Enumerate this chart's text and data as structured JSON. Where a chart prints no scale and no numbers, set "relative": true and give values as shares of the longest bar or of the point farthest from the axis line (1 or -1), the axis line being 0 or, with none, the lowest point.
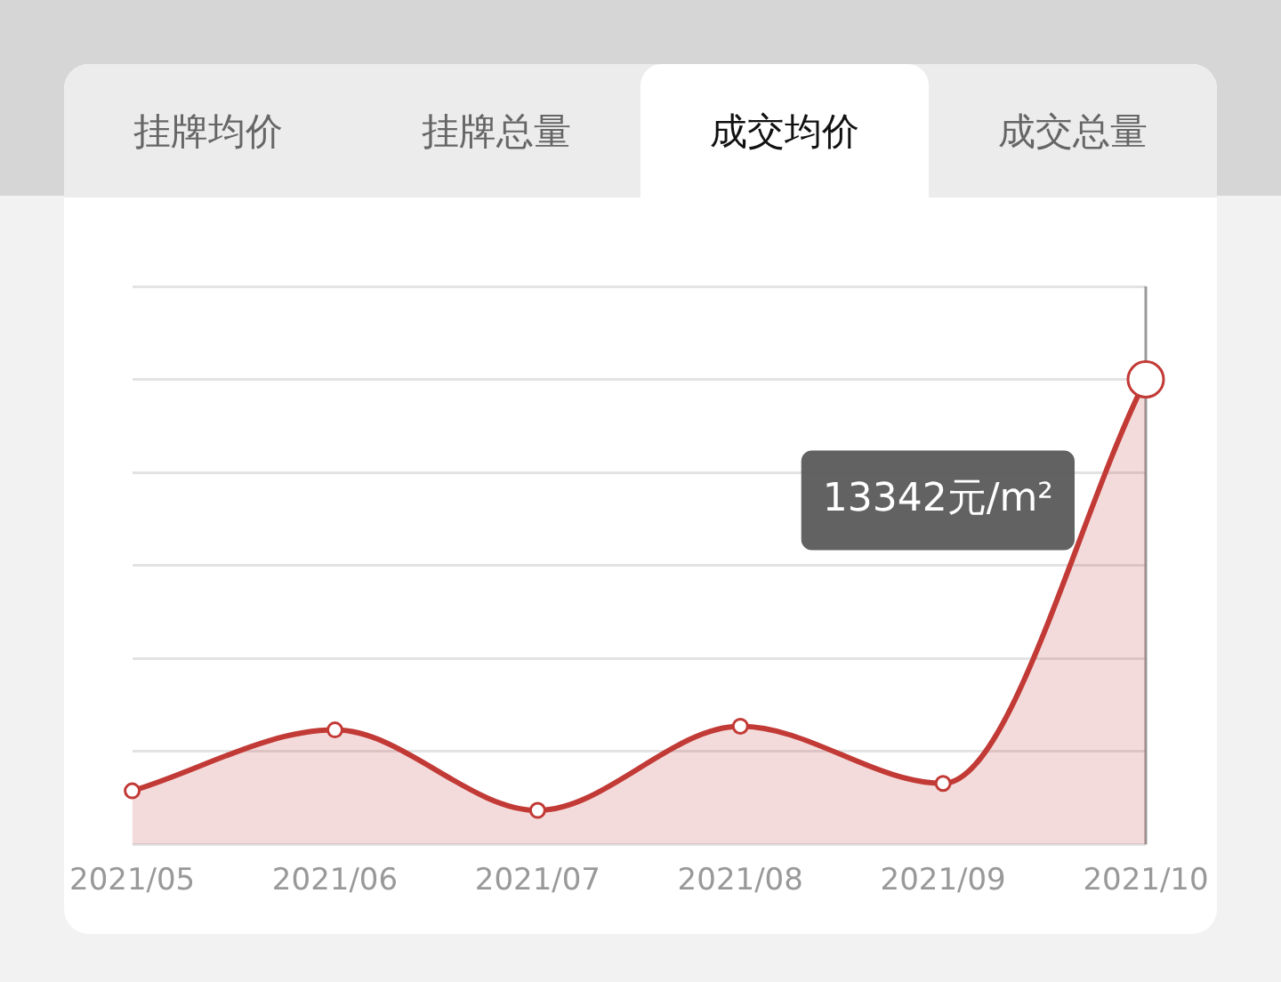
{
  "chart_data": {
    "type": "area",
    "title": "成交均价",
    "relative": true,
    "categories": [
      "2021/05",
      "2021/06",
      "2021/07",
      "2021/08",
      "2021/09",
      "2021/10"
    ],
    "series": [
      {
        "color": "#c23a36",
        "values": [
          0.115,
          0.246,
          0.073,
          0.254,
          0.131,
          1
        ]
      }
    ],
    "annotations": [
      "挂牌均价",
      "挂牌总量",
      "成交总量",
      "13342元/m²"
    ],
    "grid": "y",
    "legend": false,
    "marker": "circle"
  }
}
